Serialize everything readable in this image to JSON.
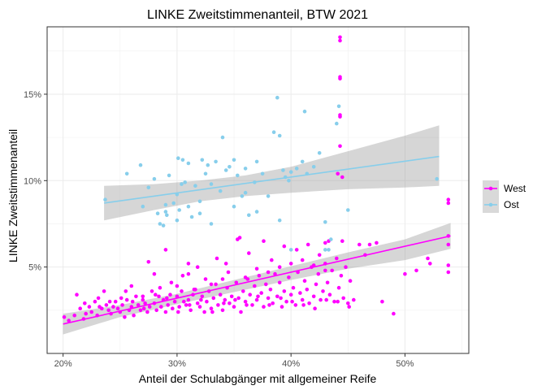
{
  "chart_data": {
    "type": "scatter",
    "title": "LINKE Zweitstimmenanteil, BTW 2021",
    "xlabel": "Anteil der Schulabgänger mit allgemeiner Reife",
    "ylabel": "LINKE Zweitstimmenanteil",
    "xlim": [
      0.186,
      0.556
    ],
    "ylim": [
      0.0,
      0.189
    ],
    "x_ticks": [
      0.2,
      0.3,
      0.4,
      0.5
    ],
    "x_tick_labels": [
      "20%",
      "30%",
      "40%",
      "50%"
    ],
    "y_ticks": [
      0.05,
      0.1,
      0.15
    ],
    "y_tick_labels": [
      "5%",
      "10%",
      "15%"
    ],
    "grid": true,
    "legend_position": "right",
    "series": [
      {
        "name": "West",
        "color": "#ff00ff",
        "trend": {
          "x": [
            0.2,
            0.54
          ],
          "y": [
            0.017,
            0.068
          ]
        },
        "ci": {
          "x": [
            0.2,
            0.25,
            0.3,
            0.35,
            0.4,
            0.45,
            0.5,
            0.54
          ],
          "lower": [
            0.011,
            0.021,
            0.0285,
            0.0355,
            0.0425,
            0.049,
            0.054,
            0.0605
          ],
          "upper": [
            0.023,
            0.028,
            0.0345,
            0.0425,
            0.0505,
            0.0585,
            0.066,
            0.0755
          ]
        },
        "points": [
          [
            0.201,
            0.021
          ],
          [
            0.205,
            0.019
          ],
          [
            0.21,
            0.022
          ],
          [
            0.212,
            0.034
          ],
          [
            0.218,
            0.02
          ],
          [
            0.22,
            0.023
          ],
          [
            0.223,
            0.027
          ],
          [
            0.225,
            0.024
          ],
          [
            0.228,
            0.03
          ],
          [
            0.23,
            0.022
          ],
          [
            0.232,
            0.027
          ],
          [
            0.234,
            0.026
          ],
          [
            0.236,
            0.036
          ],
          [
            0.238,
            0.028
          ],
          [
            0.24,
            0.025
          ],
          [
            0.242,
            0.023
          ],
          [
            0.244,
            0.027
          ],
          [
            0.246,
            0.03
          ],
          [
            0.248,
            0.026
          ],
          [
            0.25,
            0.024
          ],
          [
            0.252,
            0.028
          ],
          [
            0.254,
            0.021
          ],
          [
            0.256,
            0.031
          ],
          [
            0.258,
            0.025
          ],
          [
            0.26,
            0.027
          ],
          [
            0.262,
            0.022
          ],
          [
            0.264,
            0.033
          ],
          [
            0.266,
            0.028
          ],
          [
            0.268,
            0.025
          ],
          [
            0.27,
            0.031
          ],
          [
            0.272,
            0.029
          ],
          [
            0.274,
            0.024
          ],
          [
            0.276,
            0.027
          ],
          [
            0.278,
            0.036
          ],
          [
            0.28,
            0.029
          ],
          [
            0.282,
            0.025
          ],
          [
            0.284,
            0.033
          ],
          [
            0.286,
            0.027
          ],
          [
            0.288,
            0.031
          ],
          [
            0.29,
            0.024
          ],
          [
            0.292,
            0.028
          ],
          [
            0.294,
            0.034
          ],
          [
            0.296,
            0.026
          ],
          [
            0.298,
            0.03
          ],
          [
            0.3,
            0.033
          ],
          [
            0.302,
            0.027
          ],
          [
            0.304,
            0.036
          ],
          [
            0.306,
            0.03
          ],
          [
            0.308,
            0.028
          ],
          [
            0.31,
            0.031
          ],
          [
            0.312,
            0.025
          ],
          [
            0.314,
            0.034
          ],
          [
            0.316,
            0.037
          ],
          [
            0.318,
            0.029
          ],
          [
            0.32,
            0.027
          ],
          [
            0.322,
            0.033
          ],
          [
            0.324,
            0.024
          ],
          [
            0.326,
            0.03
          ],
          [
            0.328,
            0.036
          ],
          [
            0.33,
            0.026
          ],
          [
            0.332,
            0.032
          ],
          [
            0.334,
            0.04
          ],
          [
            0.336,
            0.028
          ],
          [
            0.338,
            0.034
          ],
          [
            0.34,
            0.025
          ],
          [
            0.342,
            0.031
          ],
          [
            0.344,
            0.038
          ],
          [
            0.346,
            0.029
          ],
          [
            0.348,
            0.033
          ],
          [
            0.35,
            0.027
          ],
          [
            0.352,
            0.041
          ],
          [
            0.354,
            0.032
          ],
          [
            0.356,
            0.024
          ],
          [
            0.358,
            0.036
          ],
          [
            0.36,
            0.03
          ],
          [
            0.362,
            0.043
          ],
          [
            0.364,
            0.034
          ],
          [
            0.366,
            0.028
          ],
          [
            0.368,
            0.039
          ],
          [
            0.37,
            0.031
          ],
          [
            0.372,
            0.045
          ],
          [
            0.374,
            0.035
          ],
          [
            0.376,
            0.027
          ],
          [
            0.378,
            0.04
          ],
          [
            0.38,
            0.032
          ],
          [
            0.382,
            0.037
          ],
          [
            0.384,
            0.029
          ],
          [
            0.386,
            0.046
          ],
          [
            0.388,
            0.033
          ],
          [
            0.39,
            0.041
          ],
          [
            0.392,
            0.027
          ],
          [
            0.394,
            0.036
          ],
          [
            0.396,
            0.03
          ],
          [
            0.398,
            0.044
          ],
          [
            0.4,
            0.034
          ],
          [
            0.402,
            0.038
          ],
          [
            0.404,
            0.028
          ],
          [
            0.406,
            0.047
          ],
          [
            0.408,
            0.035
          ],
          [
            0.41,
            0.031
          ],
          [
            0.412,
            0.042
          ],
          [
            0.414,
            0.037
          ],
          [
            0.416,
            0.029
          ],
          [
            0.418,
            0.05
          ],
          [
            0.42,
            0.033
          ],
          [
            0.422,
            0.04
          ],
          [
            0.424,
            0.046
          ],
          [
            0.426,
            0.031
          ],
          [
            0.428,
            0.036
          ],
          [
            0.43,
            0.052
          ],
          [
            0.432,
            0.041
          ],
          [
            0.434,
            0.034
          ],
          [
            0.436,
            0.048
          ],
          [
            0.438,
            0.03
          ],
          [
            0.44,
            0.055
          ],
          [
            0.442,
            0.038
          ],
          [
            0.444,
            0.045
          ],
          [
            0.446,
            0.032
          ],
          [
            0.448,
            0.05
          ],
          [
            0.45,
            0.029
          ],
          [
            0.452,
            0.042
          ],
          [
            0.455,
            0.031
          ],
          [
            0.305,
            0.045
          ],
          [
            0.318,
            0.05
          ],
          [
            0.325,
            0.043
          ],
          [
            0.335,
            0.055
          ],
          [
            0.343,
            0.052
          ],
          [
            0.353,
            0.066
          ],
          [
            0.355,
            0.067
          ],
          [
            0.363,
            0.058
          ],
          [
            0.376,
            0.065
          ],
          [
            0.383,
            0.054
          ],
          [
            0.394,
            0.062
          ],
          [
            0.405,
            0.06
          ],
          [
            0.415,
            0.063
          ],
          [
            0.425,
            0.057
          ],
          [
            0.433,
            0.065
          ],
          [
            0.29,
            0.06
          ],
          [
            0.31,
            0.052
          ],
          [
            0.31,
            0.046
          ],
          [
            0.43,
            0.064
          ],
          [
            0.445,
            0.065
          ],
          [
            0.443,
            0.12
          ],
          [
            0.443,
            0.138
          ],
          [
            0.443,
            0.137
          ],
          [
            0.443,
            0.159
          ],
          [
            0.443,
            0.16
          ],
          [
            0.443,
            0.181
          ],
          [
            0.443,
            0.183
          ],
          [
            0.441,
            0.104
          ],
          [
            0.445,
            0.102
          ],
          [
            0.538,
            0.089
          ],
          [
            0.538,
            0.087
          ],
          [
            0.538,
            0.068
          ],
          [
            0.538,
            0.063
          ],
          [
            0.538,
            0.051
          ],
          [
            0.538,
            0.047
          ],
          [
            0.52,
            0.055
          ],
          [
            0.522,
            0.052
          ],
          [
            0.51,
            0.048
          ],
          [
            0.5,
            0.046
          ],
          [
            0.48,
            0.03
          ],
          [
            0.49,
            0.023
          ],
          [
            0.469,
            0.063
          ],
          [
            0.475,
            0.064
          ],
          [
            0.465,
            0.057
          ],
          [
            0.46,
            0.063
          ],
          [
            0.275,
            0.053
          ],
          [
            0.28,
            0.046
          ],
          [
            0.26,
            0.039
          ],
          [
            0.255,
            0.036
          ],
          [
            0.27,
            0.033
          ],
          [
            0.285,
            0.038
          ],
          [
            0.295,
            0.041
          ],
          [
            0.3,
            0.039
          ],
          [
            0.315,
            0.037
          ],
          [
            0.33,
            0.04
          ],
          [
            0.34,
            0.043
          ],
          [
            0.345,
            0.047
          ],
          [
            0.36,
            0.044
          ],
          [
            0.37,
            0.049
          ],
          [
            0.38,
            0.047
          ],
          [
            0.39,
            0.05
          ],
          [
            0.4,
            0.052
          ],
          [
            0.41,
            0.054
          ],
          [
            0.42,
            0.051
          ],
          [
            0.43,
            0.048
          ],
          [
            0.215,
            0.026
          ],
          [
            0.219,
            0.029
          ],
          [
            0.231,
            0.032
          ],
          [
            0.241,
            0.03
          ],
          [
            0.251,
            0.032
          ],
          [
            0.261,
            0.03
          ],
          [
            0.271,
            0.026
          ],
          [
            0.281,
            0.034
          ],
          [
            0.291,
            0.032
          ],
          [
            0.301,
            0.024
          ],
          [
            0.311,
            0.028
          ],
          [
            0.321,
            0.031
          ],
          [
            0.331,
            0.024
          ],
          [
            0.341,
            0.029
          ],
          [
            0.351,
            0.031
          ],
          [
            0.361,
            0.028
          ],
          [
            0.371,
            0.033
          ],
          [
            0.381,
            0.028
          ],
          [
            0.391,
            0.032
          ],
          [
            0.401,
            0.03
          ],
          [
            0.411,
            0.028
          ],
          [
            0.421,
            0.026
          ],
          [
            0.431,
            0.031
          ],
          [
            0.441,
            0.03
          ],
          [
            0.451,
            0.027
          ]
        ]
      },
      {
        "name": "Ost",
        "color": "#87ceeb",
        "trend": {
          "x": [
            0.236,
            0.53
          ],
          "y": [
            0.087,
            0.114
          ]
        },
        "ci": {
          "x": [
            0.236,
            0.28,
            0.32,
            0.36,
            0.4,
            0.45,
            0.5,
            0.53
          ],
          "lower": [
            0.077,
            0.083,
            0.088,
            0.091,
            0.093,
            0.095,
            0.096,
            0.097
          ],
          "upper": [
            0.097,
            0.098,
            0.1,
            0.103,
            0.108,
            0.117,
            0.126,
            0.132
          ]
        },
        "points": [
          [
            0.237,
            0.089
          ],
          [
            0.256,
            0.104
          ],
          [
            0.268,
            0.109
          ],
          [
            0.27,
            0.085
          ],
          [
            0.275,
            0.096
          ],
          [
            0.28,
            0.101
          ],
          [
            0.283,
            0.081
          ],
          [
            0.285,
            0.075
          ],
          [
            0.29,
            0.086
          ],
          [
            0.291,
            0.08
          ],
          [
            0.293,
            0.103
          ],
          [
            0.297,
            0.087
          ],
          [
            0.3,
            0.092
          ],
          [
            0.301,
            0.113
          ],
          [
            0.302,
            0.083
          ],
          [
            0.304,
            0.098
          ],
          [
            0.305,
            0.112
          ],
          [
            0.307,
            0.099
          ],
          [
            0.31,
            0.11
          ],
          [
            0.313,
            0.079
          ],
          [
            0.316,
            0.097
          ],
          [
            0.32,
            0.088
          ],
          [
            0.322,
            0.112
          ],
          [
            0.325,
            0.104
          ],
          [
            0.327,
            0.109
          ],
          [
            0.33,
            0.098
          ],
          [
            0.334,
            0.111
          ],
          [
            0.338,
            0.094
          ],
          [
            0.34,
            0.125
          ],
          [
            0.343,
            0.106
          ],
          [
            0.346,
            0.108
          ],
          [
            0.35,
            0.112
          ],
          [
            0.353,
            0.103
          ],
          [
            0.357,
            0.091
          ],
          [
            0.36,
            0.107
          ],
          [
            0.363,
            0.08
          ],
          [
            0.368,
            0.099
          ],
          [
            0.37,
            0.111
          ],
          [
            0.375,
            0.104
          ],
          [
            0.38,
            0.091
          ],
          [
            0.385,
            0.128
          ],
          [
            0.388,
            0.148
          ],
          [
            0.39,
            0.126
          ],
          [
            0.393,
            0.106
          ],
          [
            0.395,
            0.102
          ],
          [
            0.398,
            0.1
          ],
          [
            0.4,
            0.105
          ],
          [
            0.405,
            0.107
          ],
          [
            0.41,
            0.111
          ],
          [
            0.412,
            0.14
          ],
          [
            0.414,
            0.104
          ],
          [
            0.42,
            0.108
          ],
          [
            0.425,
            0.116
          ],
          [
            0.43,
            0.076
          ],
          [
            0.433,
            0.06
          ],
          [
            0.44,
            0.133
          ],
          [
            0.442,
            0.143
          ],
          [
            0.45,
            0.083
          ],
          [
            0.39,
            0.077
          ],
          [
            0.4,
            0.06
          ],
          [
            0.35,
            0.085
          ],
          [
            0.3,
            0.077
          ],
          [
            0.32,
            0.081
          ],
          [
            0.33,
            0.075
          ],
          [
            0.31,
            0.085
          ],
          [
            0.29,
            0.082
          ],
          [
            0.288,
            0.074
          ],
          [
            0.36,
            0.093
          ],
          [
            0.37,
            0.082
          ],
          [
            0.43,
            0.06
          ],
          [
            0.435,
            0.066
          ],
          [
            0.528,
            0.101
          ]
        ]
      }
    ]
  }
}
